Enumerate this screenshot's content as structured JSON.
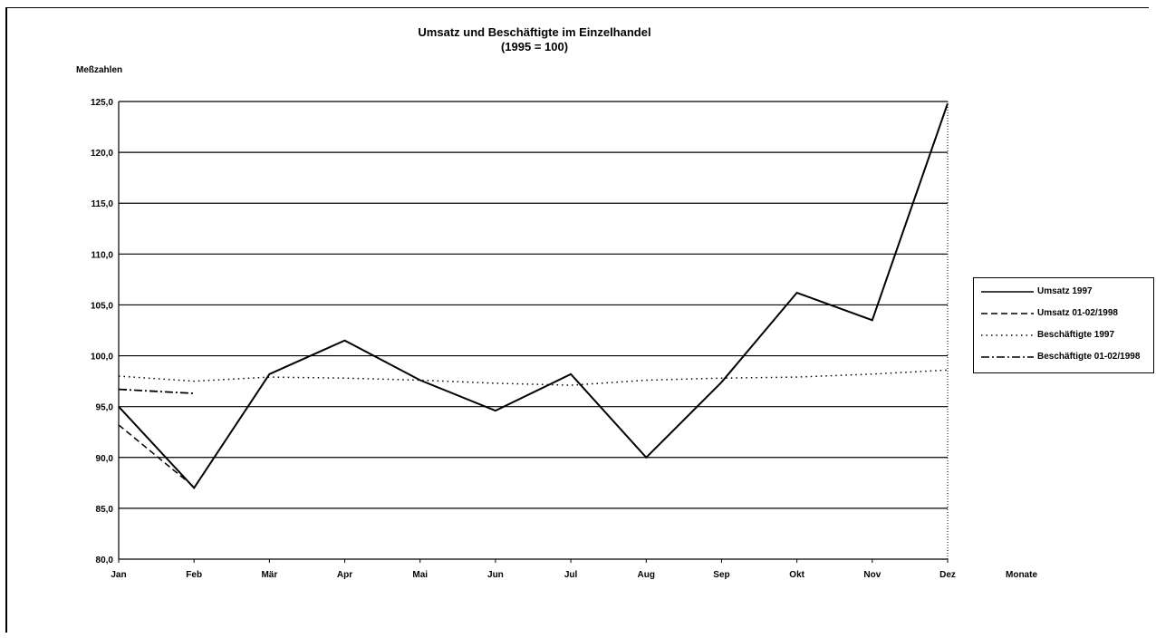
{
  "title_line1": "Umsatz und Beschäftigte im Einzelhandel",
  "title_line2": "(1995 = 100)",
  "chart_data": {
    "type": "line",
    "title": "Umsatz und Beschäftigte im Einzelhandel (1995 = 100)",
    "ylabel": "Meßzahlen",
    "xlabel": "Monate",
    "categories": [
      "Jan",
      "Feb",
      "Mär",
      "Apr",
      "Mai",
      "Jun",
      "Jul",
      "Aug",
      "Sep",
      "Okt",
      "Nov",
      "Dez"
    ],
    "ylim": [
      80,
      125
    ],
    "yticks": [
      "80,0",
      "85,0",
      "90,0",
      "95,0",
      "100,0",
      "105,0",
      "110,0",
      "115,0",
      "120,0",
      "125,0"
    ],
    "grid": true,
    "legend_position": "right",
    "series": [
      {
        "name": "Umsatz 1997",
        "style": "solid",
        "values": [
          95.0,
          87.0,
          98.2,
          101.5,
          97.6,
          94.6,
          98.2,
          90.0,
          97.4,
          106.2,
          103.5,
          124.8
        ]
      },
      {
        "name": "Umsatz 01-02/1998",
        "style": "dashed",
        "values": [
          93.2,
          87.1,
          null,
          null,
          null,
          null,
          null,
          null,
          null,
          null,
          null,
          null
        ]
      },
      {
        "name": "Beschäftigte 1997",
        "style": "dotted",
        "values": [
          98.0,
          97.5,
          97.9,
          97.8,
          97.6,
          97.3,
          97.1,
          97.6,
          97.8,
          97.9,
          98.2,
          98.6
        ]
      },
      {
        "name": "Beschäftigte 01-02/1998",
        "style": "dashdot",
        "values": [
          96.7,
          96.3,
          null,
          null,
          null,
          null,
          null,
          null,
          null,
          null,
          null,
          null
        ]
      }
    ]
  }
}
